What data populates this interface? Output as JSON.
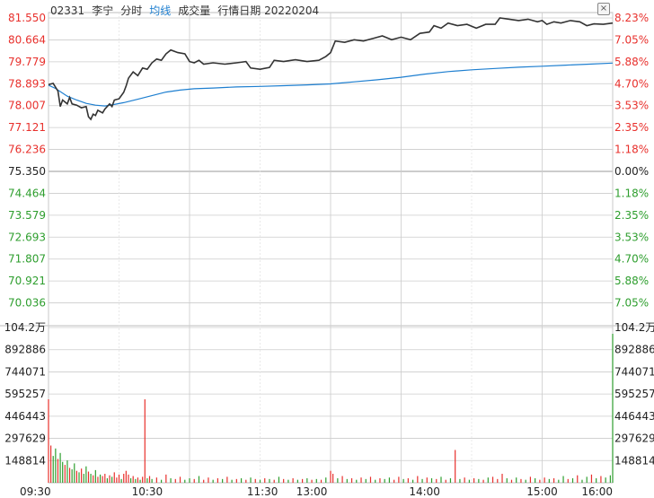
{
  "header": {
    "code": "02331",
    "name": "李宁",
    "mode": "分时",
    "ma_label": "均线",
    "vol_label": "成交量",
    "date_label": "行情日期 20220204",
    "close_glyph": "×"
  },
  "colors": {
    "up": "#e8302c",
    "down": "#2e9e2e",
    "price_line": "#333333",
    "avg_line": "#1e7fd0",
    "grid": "#cccccc",
    "axis_text": "#222222"
  },
  "chart_data": {
    "type": "line",
    "prev_close": 75.35,
    "price_ticks": [
      "81.550",
      "80.664",
      "79.779",
      "78.893",
      "78.007",
      "77.121",
      "76.236",
      "75.350",
      "74.464",
      "73.579",
      "72.693",
      "71.807",
      "70.921",
      "70.036"
    ],
    "pct_ticks": [
      "8.23%",
      "7.05%",
      "5.88%",
      "4.70%",
      "3.53%",
      "2.35%",
      "1.18%",
      "0.00%",
      "1.18%",
      "2.35%",
      "3.53%",
      "4.70%",
      "5.88%",
      "7.05%"
    ],
    "price_range": [
      69.59,
      81.55
    ],
    "vol_ticks": [
      "104.2万",
      "892886",
      "744071",
      "595257",
      "446443",
      "297629",
      "148814"
    ],
    "vol_max": 1042000,
    "time_ticks": [
      "09:30",
      "10:30",
      "11:30",
      "13:00",
      "14:00",
      "15:00",
      "16:00"
    ],
    "price_series": [
      [
        0,
        78.95
      ],
      [
        2,
        79.0
      ],
      [
        4,
        78.7
      ],
      [
        5,
        78.1
      ],
      [
        6,
        78.35
      ],
      [
        8,
        78.2
      ],
      [
        9,
        78.45
      ],
      [
        10,
        78.2
      ],
      [
        12,
        78.15
      ],
      [
        14,
        78.05
      ],
      [
        16,
        78.1
      ],
      [
        17,
        77.7
      ],
      [
        18,
        77.6
      ],
      [
        19,
        77.8
      ],
      [
        20,
        77.75
      ],
      [
        21,
        77.95
      ],
      [
        23,
        77.85
      ],
      [
        24,
        78.0
      ],
      [
        26,
        78.2
      ],
      [
        27,
        78.1
      ],
      [
        28,
        78.35
      ],
      [
        30,
        78.4
      ],
      [
        32,
        78.65
      ],
      [
        33,
        78.9
      ],
      [
        34,
        79.2
      ],
      [
        36,
        79.45
      ],
      [
        38,
        79.3
      ],
      [
        40,
        79.6
      ],
      [
        42,
        79.55
      ],
      [
        44,
        79.8
      ],
      [
        46,
        79.95
      ],
      [
        48,
        79.9
      ],
      [
        50,
        80.15
      ],
      [
        52,
        80.3
      ],
      [
        55,
        80.2
      ],
      [
        58,
        80.15
      ],
      [
        60,
        79.85
      ],
      [
        62,
        79.8
      ],
      [
        64,
        79.9
      ],
      [
        66,
        79.75
      ],
      [
        70,
        79.8
      ],
      [
        75,
        79.75
      ],
      [
        80,
        79.8
      ],
      [
        84,
        79.85
      ],
      [
        86,
        79.6
      ],
      [
        90,
        79.55
      ],
      [
        94,
        79.62
      ],
      [
        96,
        79.9
      ],
      [
        100,
        79.85
      ],
      [
        105,
        79.92
      ],
      [
        110,
        79.85
      ],
      [
        115,
        79.9
      ],
      [
        118,
        80.05
      ],
      [
        120,
        80.2
      ],
      [
        122,
        80.65
      ],
      [
        126,
        80.6
      ],
      [
        130,
        80.7
      ],
      [
        134,
        80.65
      ],
      [
        138,
        80.75
      ],
      [
        142,
        80.85
      ],
      [
        146,
        80.7
      ],
      [
        150,
        80.8
      ],
      [
        154,
        80.7
      ],
      [
        158,
        80.95
      ],
      [
        162,
        81.0
      ],
      [
        164,
        81.25
      ],
      [
        167,
        81.15
      ],
      [
        170,
        81.35
      ],
      [
        174,
        81.25
      ],
      [
        178,
        81.3
      ],
      [
        182,
        81.15
      ],
      [
        186,
        81.3
      ],
      [
        190,
        81.3
      ],
      [
        192,
        81.55
      ],
      [
        196,
        81.5
      ],
      [
        200,
        81.45
      ],
      [
        204,
        81.5
      ],
      [
        208,
        81.4
      ],
      [
        210,
        81.45
      ],
      [
        212,
        81.3
      ],
      [
        215,
        81.4
      ],
      [
        218,
        81.35
      ],
      [
        222,
        81.45
      ],
      [
        226,
        81.4
      ],
      [
        229,
        81.25
      ],
      [
        232,
        81.32
      ],
      [
        236,
        81.3
      ],
      [
        240,
        81.35
      ]
    ],
    "avg_series": [
      [
        0,
        78.93
      ],
      [
        3,
        78.8
      ],
      [
        8,
        78.5
      ],
      [
        12,
        78.35
      ],
      [
        16,
        78.22
      ],
      [
        20,
        78.15
      ],
      [
        24,
        78.12
      ],
      [
        28,
        78.18
      ],
      [
        32,
        78.25
      ],
      [
        38,
        78.38
      ],
      [
        44,
        78.52
      ],
      [
        50,
        78.66
      ],
      [
        56,
        78.74
      ],
      [
        62,
        78.79
      ],
      [
        70,
        78.82
      ],
      [
        80,
        78.86
      ],
      [
        90,
        78.88
      ],
      [
        100,
        78.91
      ],
      [
        110,
        78.94
      ],
      [
        120,
        78.98
      ],
      [
        130,
        79.06
      ],
      [
        140,
        79.14
      ],
      [
        150,
        79.24
      ],
      [
        160,
        79.36
      ],
      [
        170,
        79.46
      ],
      [
        180,
        79.53
      ],
      [
        190,
        79.58
      ],
      [
        200,
        79.63
      ],
      [
        210,
        79.67
      ],
      [
        220,
        79.71
      ],
      [
        230,
        79.75
      ],
      [
        240,
        79.79
      ]
    ],
    "volume": [
      [
        0,
        560000,
        "u"
      ],
      [
        1,
        250000,
        "u"
      ],
      [
        2,
        180000,
        "d"
      ],
      [
        3,
        230000,
        "d"
      ],
      [
        4,
        160000,
        "u"
      ],
      [
        5,
        200000,
        "d"
      ],
      [
        6,
        140000,
        "d"
      ],
      [
        7,
        120000,
        "u"
      ],
      [
        8,
        150000,
        "d"
      ],
      [
        9,
        100000,
        "u"
      ],
      [
        10,
        90000,
        "d"
      ],
      [
        11,
        130000,
        "d"
      ],
      [
        12,
        80000,
        "u"
      ],
      [
        13,
        70000,
        "d"
      ],
      [
        14,
        95000,
        "u"
      ],
      [
        15,
        60000,
        "d"
      ],
      [
        16,
        110000,
        "d"
      ],
      [
        17,
        75000,
        "u"
      ],
      [
        18,
        60000,
        "d"
      ],
      [
        19,
        50000,
        "u"
      ],
      [
        20,
        85000,
        "d"
      ],
      [
        21,
        40000,
        "u"
      ],
      [
        22,
        55000,
        "d"
      ],
      [
        23,
        45000,
        "u"
      ],
      [
        24,
        60000,
        "u"
      ],
      [
        25,
        30000,
        "d"
      ],
      [
        26,
        50000,
        "u"
      ],
      [
        27,
        40000,
        "d"
      ],
      [
        28,
        70000,
        "u"
      ],
      [
        29,
        35000,
        "u"
      ],
      [
        30,
        55000,
        "u"
      ],
      [
        31,
        25000,
        "d"
      ],
      [
        32,
        60000,
        "u"
      ],
      [
        33,
        80000,
        "u"
      ],
      [
        34,
        55000,
        "u"
      ],
      [
        35,
        30000,
        "d"
      ],
      [
        36,
        45000,
        "u"
      ],
      [
        37,
        25000,
        "d"
      ],
      [
        38,
        35000,
        "u"
      ],
      [
        39,
        20000,
        "d"
      ],
      [
        40,
        40000,
        "u"
      ],
      [
        41,
        560000,
        "u"
      ],
      [
        42,
        30000,
        "d"
      ],
      [
        43,
        45000,
        "u"
      ],
      [
        44,
        25000,
        "d"
      ],
      [
        46,
        35000,
        "u"
      ],
      [
        48,
        20000,
        "d"
      ],
      [
        50,
        55000,
        "u"
      ],
      [
        52,
        30000,
        "d"
      ],
      [
        54,
        25000,
        "u"
      ],
      [
        56,
        40000,
        "u"
      ],
      [
        58,
        20000,
        "d"
      ],
      [
        60,
        30000,
        "d"
      ],
      [
        62,
        25000,
        "u"
      ],
      [
        64,
        45000,
        "d"
      ],
      [
        66,
        20000,
        "u"
      ],
      [
        68,
        35000,
        "u"
      ],
      [
        70,
        20000,
        "d"
      ],
      [
        72,
        30000,
        "u"
      ],
      [
        74,
        25000,
        "d"
      ],
      [
        76,
        40000,
        "u"
      ],
      [
        78,
        20000,
        "d"
      ],
      [
        80,
        25000,
        "u"
      ],
      [
        82,
        30000,
        "d"
      ],
      [
        84,
        20000,
        "u"
      ],
      [
        86,
        35000,
        "d"
      ],
      [
        88,
        25000,
        "u"
      ],
      [
        90,
        20000,
        "d"
      ],
      [
        92,
        30000,
        "u"
      ],
      [
        94,
        25000,
        "d"
      ],
      [
        96,
        20000,
        "u"
      ],
      [
        98,
        40000,
        "d"
      ],
      [
        100,
        25000,
        "u"
      ],
      [
        102,
        20000,
        "d"
      ],
      [
        104,
        30000,
        "u"
      ],
      [
        106,
        20000,
        "d"
      ],
      [
        108,
        25000,
        "u"
      ],
      [
        110,
        30000,
        "d"
      ],
      [
        112,
        20000,
        "u"
      ],
      [
        114,
        25000,
        "d"
      ],
      [
        116,
        20000,
        "u"
      ],
      [
        118,
        35000,
        "d"
      ],
      [
        120,
        80000,
        "u"
      ],
      [
        121,
        60000,
        "u"
      ],
      [
        123,
        30000,
        "d"
      ],
      [
        125,
        45000,
        "u"
      ],
      [
        127,
        25000,
        "d"
      ],
      [
        129,
        30000,
        "u"
      ],
      [
        131,
        20000,
        "d"
      ],
      [
        133,
        35000,
        "u"
      ],
      [
        135,
        25000,
        "d"
      ],
      [
        137,
        40000,
        "u"
      ],
      [
        139,
        20000,
        "d"
      ],
      [
        141,
        30000,
        "u"
      ],
      [
        143,
        25000,
        "d"
      ],
      [
        145,
        35000,
        "d"
      ],
      [
        147,
        20000,
        "u"
      ],
      [
        149,
        40000,
        "u"
      ],
      [
        151,
        25000,
        "d"
      ],
      [
        153,
        30000,
        "u"
      ],
      [
        155,
        20000,
        "d"
      ],
      [
        157,
        45000,
        "u"
      ],
      [
        159,
        25000,
        "d"
      ],
      [
        161,
        35000,
        "u"
      ],
      [
        163,
        30000,
        "d"
      ],
      [
        165,
        25000,
        "u"
      ],
      [
        167,
        40000,
        "d"
      ],
      [
        169,
        20000,
        "u"
      ],
      [
        171,
        30000,
        "d"
      ],
      [
        173,
        220000,
        "u"
      ],
      [
        175,
        25000,
        "d"
      ],
      [
        177,
        35000,
        "u"
      ],
      [
        179,
        20000,
        "d"
      ],
      [
        181,
        30000,
        "u"
      ],
      [
        183,
        25000,
        "d"
      ],
      [
        185,
        20000,
        "u"
      ],
      [
        187,
        35000,
        "d"
      ],
      [
        189,
        40000,
        "u"
      ],
      [
        191,
        25000,
        "u"
      ],
      [
        193,
        60000,
        "u"
      ],
      [
        195,
        30000,
        "d"
      ],
      [
        197,
        20000,
        "u"
      ],
      [
        199,
        35000,
        "d"
      ],
      [
        201,
        25000,
        "u"
      ],
      [
        203,
        20000,
        "d"
      ],
      [
        205,
        40000,
        "u"
      ],
      [
        207,
        30000,
        "d"
      ],
      [
        209,
        20000,
        "u"
      ],
      [
        211,
        35000,
        "u"
      ],
      [
        213,
        25000,
        "d"
      ],
      [
        215,
        30000,
        "u"
      ],
      [
        217,
        20000,
        "d"
      ],
      [
        219,
        45000,
        "d"
      ],
      [
        221,
        25000,
        "u"
      ],
      [
        223,
        30000,
        "d"
      ],
      [
        225,
        50000,
        "u"
      ],
      [
        227,
        20000,
        "d"
      ],
      [
        229,
        40000,
        "d"
      ],
      [
        231,
        55000,
        "u"
      ],
      [
        233,
        30000,
        "d"
      ],
      [
        235,
        45000,
        "u"
      ],
      [
        237,
        35000,
        "d"
      ],
      [
        239,
        50000,
        "d"
      ],
      [
        240,
        1000000,
        "d"
      ]
    ]
  }
}
